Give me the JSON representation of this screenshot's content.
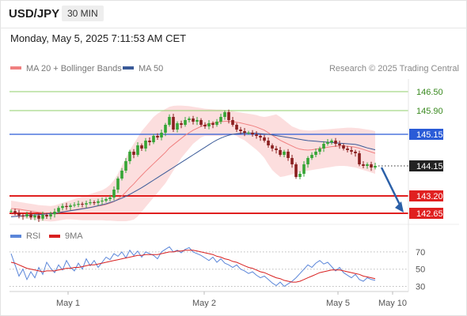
{
  "header": {
    "symbol": "USD/JPY",
    "timeframe": "30 MIN",
    "datetime": "Monday, May 5, 2025 7:11:53 AM CET"
  },
  "legend": {
    "ma20_bb": "MA 20 + Bollinger Bands",
    "ma50": "MA 50",
    "credit": "Research © 2025 Trading Central",
    "rsi": "RSI",
    "rsi_ma": "9MA"
  },
  "colors": {
    "ma20": "#f08080",
    "bands": "#fbd3d3",
    "ma50": "#3a5a98",
    "candle_up": "#35a535",
    "candle_down": "#8a1f1f",
    "resistance_green": "#8fcf6a",
    "pivot_blue": "#2a5bd7",
    "support_red": "#e02020",
    "arrow": "#2b60a8",
    "rsi": "#5b86d9",
    "rsi_ma": "#d82020",
    "current_price_label": "#222222"
  },
  "chart_data": [
    {
      "type": "candlestick",
      "title": "USD/JPY 30 MIN",
      "x_ticks": [
        "May 1",
        "May 2",
        "May 5",
        "May 10"
      ],
      "ylim": [
        142.4,
        146.9
      ],
      "price_levels": [
        {
          "value": 146.5,
          "label": "146.50",
          "kind": "resistance-2"
        },
        {
          "value": 145.9,
          "label": "145.90",
          "kind": "resistance-1"
        },
        {
          "value": 145.15,
          "label": "145.15",
          "kind": "pivot"
        },
        {
          "value": 144.15,
          "label": "144.15",
          "kind": "last-price"
        },
        {
          "value": 143.2,
          "label": "143.20",
          "kind": "support-1"
        },
        {
          "value": 142.65,
          "label": "142.65",
          "kind": "support-2"
        }
      ],
      "close": [
        142.72,
        142.66,
        142.58,
        142.55,
        142.62,
        142.52,
        142.58,
        142.48,
        142.6,
        142.55,
        142.62,
        142.7,
        142.82,
        142.88,
        142.85,
        142.9,
        142.92,
        142.95,
        142.93,
        142.97,
        143.0,
        142.98,
        143.03,
        143.05,
        143.1,
        143.15,
        143.4,
        143.75,
        144.0,
        144.3,
        144.6,
        144.5,
        144.8,
        144.7,
        144.95,
        144.9,
        145.1,
        145.05,
        145.2,
        145.45,
        145.7,
        145.3,
        145.5,
        145.45,
        145.6,
        145.65,
        145.55,
        145.6,
        145.45,
        145.4,
        145.5,
        145.45,
        145.55,
        145.7,
        145.85,
        145.6,
        145.45,
        145.3,
        145.25,
        145.2,
        145.2,
        145.15,
        145.1,
        145.05,
        144.95,
        144.8,
        144.7,
        144.65,
        144.5,
        144.6,
        144.4,
        144.2,
        143.8,
        143.9,
        144.2,
        144.4,
        144.5,
        144.6,
        144.7,
        144.85,
        144.9,
        144.95,
        144.85,
        144.8,
        144.7,
        144.65,
        144.6,
        144.55,
        144.2,
        144.15,
        144.2,
        144.1,
        144.15
      ],
      "ma20": [
        142.8,
        142.79,
        142.78,
        142.76,
        142.74,
        142.72,
        142.7,
        142.68,
        142.67,
        142.66,
        142.65,
        142.66,
        142.68,
        142.7,
        142.72,
        142.74,
        142.76,
        142.78,
        142.8,
        142.82,
        142.84,
        142.86,
        142.88,
        142.9,
        142.93,
        142.97,
        143.02,
        143.1,
        143.2,
        143.32,
        143.46,
        143.58,
        143.72,
        143.85,
        143.98,
        144.1,
        144.22,
        144.34,
        144.46,
        144.58,
        144.72,
        144.82,
        144.92,
        145.02,
        145.12,
        145.2,
        145.28,
        145.34,
        145.4,
        145.45,
        145.48,
        145.51,
        145.53,
        145.55,
        145.56,
        145.56,
        145.55,
        145.53,
        145.51,
        145.48,
        145.45,
        145.42,
        145.38,
        145.33,
        145.28,
        145.2,
        145.12,
        145.04,
        144.96,
        144.9,
        144.84,
        144.78,
        144.72,
        144.68,
        144.66,
        144.65,
        144.66,
        144.68,
        144.7,
        144.72,
        144.74,
        144.76,
        144.77,
        144.78,
        144.78,
        144.77,
        144.76,
        144.74,
        144.71,
        144.67,
        144.63,
        144.59,
        144.55
      ],
      "bb_upper": [
        143.05,
        143.03,
        143.01,
        142.99,
        142.97,
        142.95,
        142.93,
        142.91,
        142.9,
        142.89,
        142.88,
        142.9,
        142.94,
        142.98,
        143.02,
        143.06,
        143.1,
        143.14,
        143.18,
        143.22,
        143.26,
        143.3,
        143.34,
        143.38,
        143.45,
        143.55,
        143.7,
        143.9,
        144.15,
        144.4,
        144.65,
        144.85,
        145.05,
        145.25,
        145.4,
        145.55,
        145.7,
        145.8,
        145.88,
        145.95,
        146.02,
        146.05,
        146.06,
        146.06,
        146.05,
        146.04,
        146.02,
        146.0,
        145.98,
        145.96,
        145.95,
        145.94,
        145.93,
        145.93,
        145.92,
        145.9,
        145.88,
        145.86,
        145.84,
        145.82,
        145.8,
        145.78,
        145.76,
        145.72,
        145.7,
        145.72,
        145.75,
        145.78,
        145.7,
        145.6,
        145.5,
        145.4,
        145.35,
        145.3,
        145.28,
        145.27,
        145.27,
        145.28,
        145.29,
        145.3,
        145.31,
        145.32,
        145.33,
        145.34,
        145.35,
        145.36,
        145.36,
        145.35,
        145.34,
        145.32,
        145.3,
        145.28,
        145.25
      ],
      "bb_lower": [
        142.55,
        142.54,
        142.52,
        142.5,
        142.48,
        142.46,
        142.44,
        142.42,
        142.41,
        142.4,
        142.39,
        142.4,
        142.42,
        142.44,
        142.46,
        142.46,
        142.45,
        142.44,
        142.43,
        142.43,
        142.43,
        142.43,
        142.43,
        142.43,
        142.42,
        142.42,
        142.41,
        142.4,
        142.4,
        142.4,
        142.42,
        142.45,
        142.55,
        142.7,
        142.85,
        143.0,
        143.15,
        143.3,
        143.45,
        143.6,
        143.8,
        144.0,
        144.2,
        144.4,
        144.55,
        144.7,
        144.85,
        144.95,
        145.05,
        145.1,
        145.1,
        145.1,
        145.1,
        145.1,
        145.1,
        145.12,
        145.14,
        145.1,
        145.02,
        144.96,
        144.86,
        144.76,
        144.66,
        144.54,
        144.4,
        144.2,
        144.02,
        143.9,
        143.8,
        143.82,
        143.85,
        143.88,
        143.92,
        143.95,
        143.98,
        144.0,
        144.02,
        144.04,
        144.06,
        144.08,
        144.1,
        144.12,
        144.14,
        144.15,
        144.15,
        144.14,
        144.12,
        144.1,
        144.06,
        144.02,
        143.98,
        143.94,
        143.9
      ],
      "ma50": [
        142.54,
        142.55,
        142.56,
        142.57,
        142.58,
        142.59,
        142.6,
        142.61,
        142.62,
        142.63,
        142.64,
        142.65,
        142.67,
        142.69,
        142.71,
        142.73,
        142.75,
        142.77,
        142.79,
        142.81,
        142.83,
        142.86,
        142.89,
        142.92,
        142.95,
        142.99,
        143.03,
        143.08,
        143.13,
        143.19,
        143.25,
        143.32,
        143.39,
        143.46,
        143.54,
        143.62,
        143.7,
        143.78,
        143.86,
        143.94,
        144.02,
        144.1,
        144.18,
        144.26,
        144.34,
        144.42,
        144.5,
        144.58,
        144.66,
        144.74,
        144.82,
        144.9,
        144.97,
        145.03,
        145.08,
        145.12,
        145.15,
        145.17,
        145.18,
        145.19,
        145.19,
        145.19,
        145.18,
        145.17,
        145.16,
        145.15,
        145.13,
        145.11,
        145.09,
        145.07,
        145.05,
        145.03,
        145.01,
        144.99,
        144.97,
        144.95,
        144.94,
        144.93,
        144.92,
        144.91,
        144.9,
        144.89,
        144.88,
        144.87,
        144.86,
        144.85,
        144.84,
        144.83,
        144.8,
        144.76,
        144.72,
        144.69,
        144.66
      ]
    },
    {
      "type": "line",
      "title": "RSI",
      "ylim": [
        25,
        80
      ],
      "y_ticks": [
        70,
        50,
        30
      ],
      "series": [
        {
          "name": "RSI",
          "values": [
            68,
            55,
            42,
            50,
            38,
            47,
            40,
            52,
            44,
            58,
            51,
            46,
            55,
            49,
            60,
            52,
            48,
            57,
            50,
            62,
            54,
            60,
            52,
            58,
            64,
            61,
            68,
            65,
            70,
            63,
            72,
            66,
            71,
            64,
            70,
            68,
            66,
            62,
            70,
            73,
            76,
            70,
            72,
            69,
            73,
            75,
            70,
            68,
            66,
            63,
            60,
            64,
            58,
            62,
            57,
            55,
            52,
            55,
            50,
            48,
            45,
            47,
            43,
            40,
            42,
            38,
            34,
            31,
            35,
            30,
            33,
            36,
            40,
            45,
            50,
            55,
            52,
            57,
            60,
            56,
            58,
            53,
            48,
            52,
            46,
            43,
            40,
            44,
            38,
            36,
            40,
            38,
            37
          ]
        },
        {
          "name": "9MA",
          "values": [
            58,
            57,
            55,
            53,
            51,
            50,
            49,
            48,
            47,
            48,
            48,
            48,
            49,
            50,
            51,
            51,
            52,
            52,
            53,
            54,
            55,
            55,
            56,
            57,
            58,
            59,
            60,
            61,
            62,
            63,
            64,
            65,
            66,
            66,
            67,
            67,
            67,
            67,
            68,
            69,
            70,
            70,
            71,
            71,
            72,
            72,
            72,
            71,
            70,
            69,
            68,
            67,
            65,
            64,
            62,
            61,
            59,
            58,
            56,
            54,
            52,
            51,
            49,
            47,
            46,
            44,
            42,
            40,
            39,
            37,
            36,
            35,
            35,
            36,
            38,
            40,
            42,
            44,
            46,
            47,
            48,
            49,
            49,
            49,
            48,
            47,
            46,
            45,
            44,
            42,
            41,
            40,
            39
          ]
        }
      ]
    }
  ]
}
